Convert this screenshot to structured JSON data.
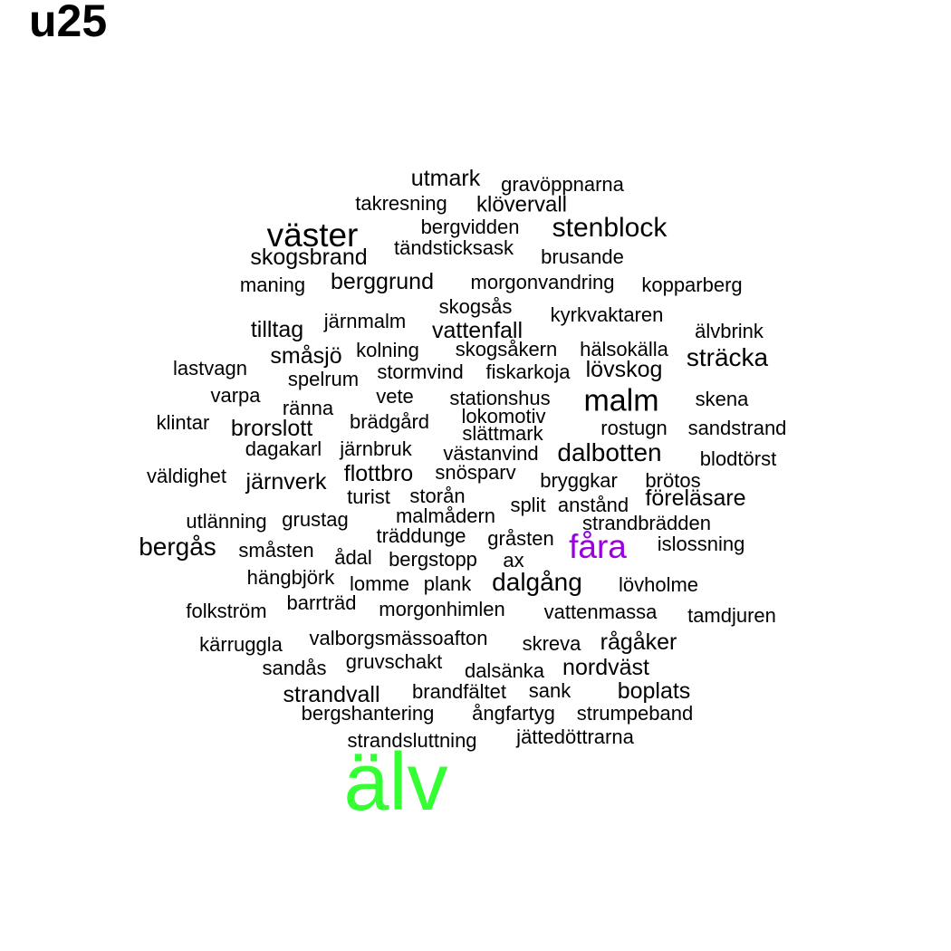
{
  "title": "u25",
  "colors": {
    "text": "#000000",
    "highlight_green": "#33ff33",
    "highlight_purple": "#9900dd"
  },
  "words": [
    {
      "text": "utmark"
    },
    {
      "text": "gravöppnarna"
    },
    {
      "text": "takresning"
    },
    {
      "text": "klövervall"
    },
    {
      "text": "väster"
    },
    {
      "text": "bergvidden"
    },
    {
      "text": "stenblock"
    },
    {
      "text": "tändsticksask"
    },
    {
      "text": "skogsbrand"
    },
    {
      "text": "brusande"
    },
    {
      "text": "maning"
    },
    {
      "text": "berggrund"
    },
    {
      "text": "morgonvandring"
    },
    {
      "text": "kopparberg"
    },
    {
      "text": "skogsås"
    },
    {
      "text": "kyrkvaktaren"
    },
    {
      "text": "järnmalm"
    },
    {
      "text": "tilltag"
    },
    {
      "text": "vattenfall"
    },
    {
      "text": "älvbrink"
    },
    {
      "text": "småsjö"
    },
    {
      "text": "kolning"
    },
    {
      "text": "skogsåkern"
    },
    {
      "text": "hälsokälla"
    },
    {
      "text": "sträcka"
    },
    {
      "text": "lastvagn"
    },
    {
      "text": "stormvind"
    },
    {
      "text": "fiskarkoja"
    },
    {
      "text": "lövskog"
    },
    {
      "text": "spelrum"
    },
    {
      "text": "varpa"
    },
    {
      "text": "vete"
    },
    {
      "text": "stationshus"
    },
    {
      "text": "malm"
    },
    {
      "text": "skena"
    },
    {
      "text": "ränna"
    },
    {
      "text": "klintar"
    },
    {
      "text": "brädgård"
    },
    {
      "text": "lokomotiv"
    },
    {
      "text": "brorslott"
    },
    {
      "text": "rostugn"
    },
    {
      "text": "sandstrand"
    },
    {
      "text": "slättmark"
    },
    {
      "text": "dagakarl"
    },
    {
      "text": "järnbruk"
    },
    {
      "text": "västanvind"
    },
    {
      "text": "dalbotten"
    },
    {
      "text": "blodtörst"
    },
    {
      "text": "väldighet"
    },
    {
      "text": "flottbro"
    },
    {
      "text": "snösparv"
    },
    {
      "text": "järnverk"
    },
    {
      "text": "bryggkar"
    },
    {
      "text": "brötos"
    },
    {
      "text": "turist"
    },
    {
      "text": "storån"
    },
    {
      "text": "föreläsare"
    },
    {
      "text": "split"
    },
    {
      "text": "anstånd"
    },
    {
      "text": "utlänning"
    },
    {
      "text": "grustag"
    },
    {
      "text": "malmådern"
    },
    {
      "text": "strandbrädden"
    },
    {
      "text": "träddunge"
    },
    {
      "text": "gråsten"
    },
    {
      "text": "fåra"
    },
    {
      "text": "bergås"
    },
    {
      "text": "islossning"
    },
    {
      "text": "småsten"
    },
    {
      "text": "ådal"
    },
    {
      "text": "bergstopp"
    },
    {
      "text": "ax"
    },
    {
      "text": "hängbjörk"
    },
    {
      "text": "dalgång"
    },
    {
      "text": "lomme"
    },
    {
      "text": "plank"
    },
    {
      "text": "lövholme"
    },
    {
      "text": "barrträd"
    },
    {
      "text": "folkström"
    },
    {
      "text": "morgonhimlen"
    },
    {
      "text": "vattenmassa"
    },
    {
      "text": "tamdjuren"
    },
    {
      "text": "valborgsmässoafton"
    },
    {
      "text": "kärruggla"
    },
    {
      "text": "skreva"
    },
    {
      "text": "rågåker"
    },
    {
      "text": "gruvschakt"
    },
    {
      "text": "sandås"
    },
    {
      "text": "dalsänka"
    },
    {
      "text": "nordväst"
    },
    {
      "text": "brandfältet"
    },
    {
      "text": "sank"
    },
    {
      "text": "boplats"
    },
    {
      "text": "strandvall"
    },
    {
      "text": "bergshantering"
    },
    {
      "text": "ångfartyg"
    },
    {
      "text": "strumpeband"
    },
    {
      "text": "jättedöttrarna"
    },
    {
      "text": "strandsluttning"
    },
    {
      "text": "älv"
    }
  ]
}
